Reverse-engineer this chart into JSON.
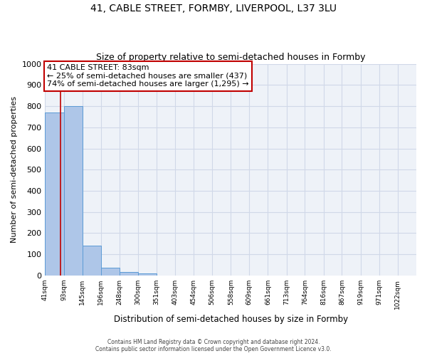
{
  "title_line1": "41, CABLE STREET, FORMBY, LIVERPOOL, L37 3LU",
  "title_line2": "Size of property relative to semi-detached houses in Formby",
  "xlabel": "Distribution of semi-detached houses by size in Formby",
  "ylabel": "Number of semi-detached properties",
  "footnote": "Contains HM Land Registry data © Crown copyright and database right 2024.\nContains public sector information licensed under the Open Government Licence v3.0.",
  "annotation_title": "41 CABLE STREET: 83sqm",
  "annotation_line1": "← 25% of semi-detached houses are smaller (437)",
  "annotation_line2": "74% of semi-detached houses are larger (1,295) →",
  "property_sqm": 83,
  "bar_edges": [
    41,
    93,
    145,
    196,
    248,
    300,
    351,
    403,
    454,
    506,
    558,
    609,
    661,
    713,
    764,
    816,
    867,
    919,
    971,
    1022,
    1074
  ],
  "bar_heights": [
    770,
    800,
    140,
    37,
    18,
    10,
    0,
    0,
    0,
    0,
    0,
    0,
    0,
    0,
    0,
    0,
    0,
    0,
    0,
    0
  ],
  "bar_color": "#aec6e8",
  "bar_edge_color": "#5b9bd5",
  "property_line_color": "#c00000",
  "annotation_box_color": "#c00000",
  "ylim": [
    0,
    1000
  ],
  "yticks": [
    0,
    100,
    200,
    300,
    400,
    500,
    600,
    700,
    800,
    900,
    1000
  ],
  "grid_color": "#d0d8e8",
  "background_color": "#eef2f8",
  "title_fontsize": 10,
  "subtitle_fontsize": 9
}
